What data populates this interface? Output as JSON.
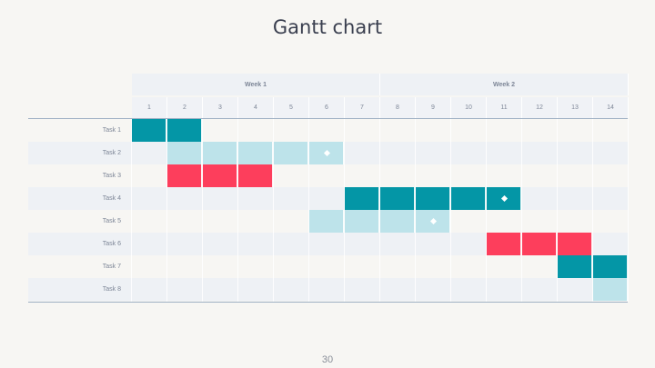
{
  "title": "Gantt chart",
  "page_number": "30",
  "weeks": [
    "Week 1",
    "Week 2"
  ],
  "days": [
    "1",
    "2",
    "3",
    "4",
    "5",
    "6",
    "7",
    "8",
    "9",
    "10",
    "11",
    "12",
    "13",
    "14"
  ],
  "colors": {
    "teal": "#0496a6",
    "light": "#bde3ea",
    "red": "#fd3e5c"
  },
  "tasks": [
    {
      "label": "Task 1",
      "start": 1,
      "end": 2,
      "color": "teal"
    },
    {
      "label": "Task 2",
      "start": 2,
      "end": 6,
      "color": "light",
      "milestone_day": 6
    },
    {
      "label": "Task 3",
      "start": 2,
      "end": 4,
      "color": "red"
    },
    {
      "label": "Task 4",
      "start": 7,
      "end": 11,
      "color": "teal",
      "milestone_day": 11
    },
    {
      "label": "Task 5",
      "start": 6,
      "end": 9,
      "color": "light",
      "milestone_day": 9
    },
    {
      "label": "Task 6",
      "start": 11,
      "end": 13,
      "color": "red"
    },
    {
      "label": "Task 7",
      "start": 13,
      "end": 14,
      "color": "teal"
    },
    {
      "label": "Task 8",
      "start": 14,
      "end": 14,
      "color": "light"
    }
  ]
}
